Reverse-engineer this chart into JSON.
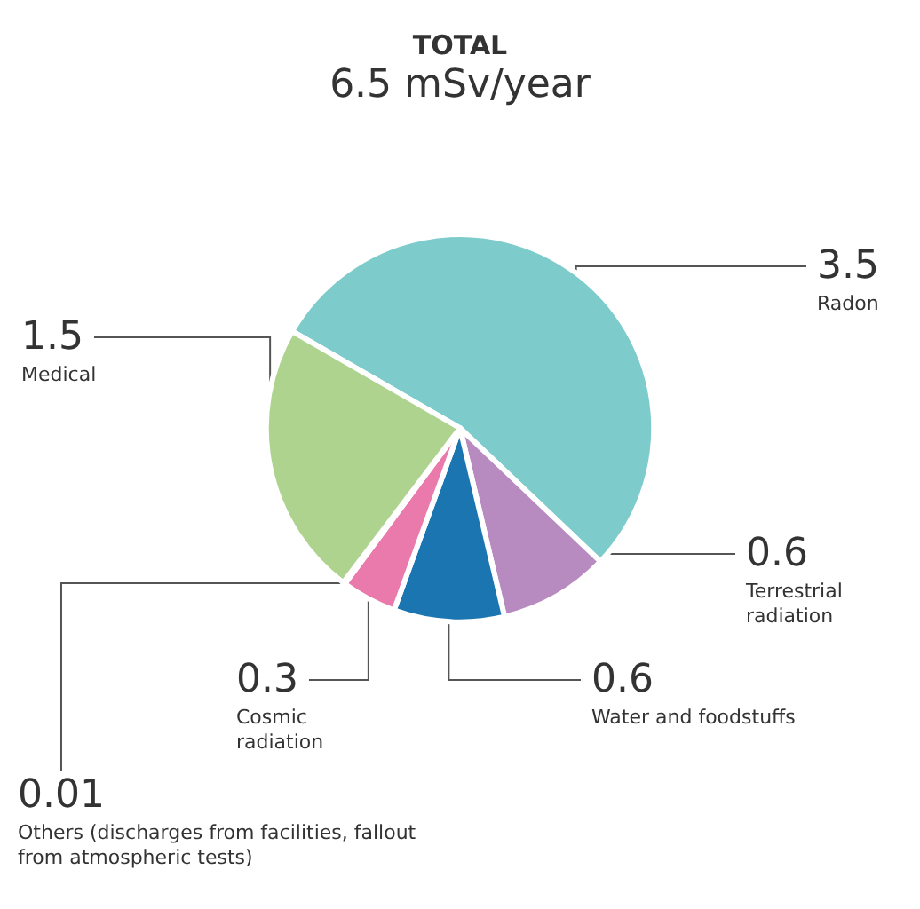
{
  "chart_data": {
    "type": "pie",
    "title": "TOTAL",
    "subtitle": "6.5 mSv/year",
    "categories": [
      "Radon",
      "Terrestrial radiation",
      "Water and foodstuffs",
      "Cosmic radiation",
      "Others (discharges from facilities, fallout from atmospheric tests)",
      "Medical"
    ],
    "values": [
      3.5,
      0.6,
      0.6,
      0.3,
      0.01,
      1.5
    ],
    "colors": [
      "#7ecbcb",
      "#b88bc0",
      "#1b75b1",
      "#e97aab",
      "#f39200",
      "#aed38e"
    ],
    "data_labels": true,
    "legend": false
  }
}
